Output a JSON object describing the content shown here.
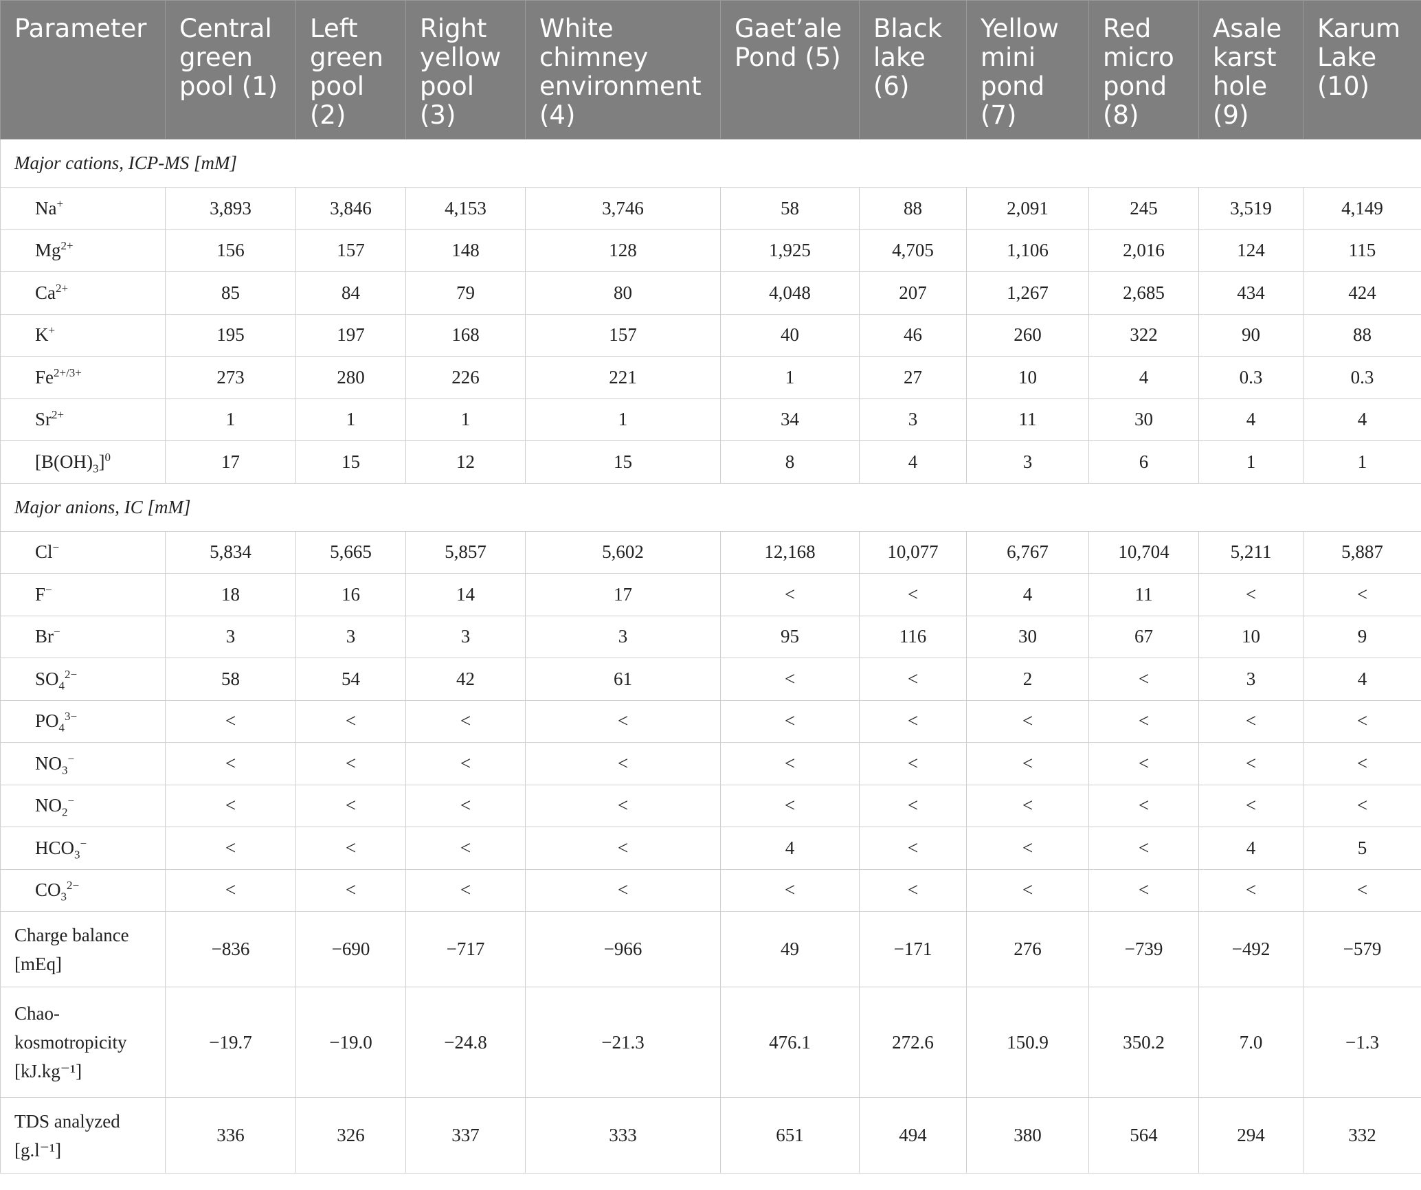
{
  "headers": [
    "Parameter",
    "Central green pool (1)",
    "Left green pool (2)",
    "Right yellow pool (3)",
    "White chimney environment (4)",
    "Gaet’ale Pond (5)",
    "Black lake (6)",
    "Yellow mini pond (7)",
    "Red micro pond (8)",
    "Asale karst hole (9)",
    "Karum Lake (10)"
  ],
  "sections": {
    "cations_title": "Major cations, ICP-MS [mM]",
    "anions_title": "Major anions, IC [mM]"
  },
  "cations": [
    {
      "base": "Na",
      "sup": "+",
      "values": [
        "3,893",
        "3,846",
        "4,153",
        "3,746",
        "58",
        "88",
        "2,091",
        "245",
        "3,519",
        "4,149"
      ]
    },
    {
      "base": "Mg",
      "sup": "2+",
      "values": [
        "156",
        "157",
        "148",
        "128",
        "1,925",
        "4,705",
        "1,106",
        "2,016",
        "124",
        "115"
      ]
    },
    {
      "base": "Ca",
      "sup": "2+",
      "values": [
        "85",
        "84",
        "79",
        "80",
        "4,048",
        "207",
        "1,267",
        "2,685",
        "434",
        "424"
      ]
    },
    {
      "base": "K",
      "sup": "+",
      "values": [
        "195",
        "197",
        "168",
        "157",
        "40",
        "46",
        "260",
        "322",
        "90",
        "88"
      ]
    },
    {
      "base": "Fe",
      "sup": "2+/3+",
      "values": [
        "273",
        "280",
        "226",
        "221",
        "1",
        "27",
        "10",
        "4",
        "0.3",
        "0.3"
      ]
    },
    {
      "base": "Sr",
      "sup": "2+",
      "values": [
        "1",
        "1",
        "1",
        "1",
        "34",
        "3",
        "11",
        "30",
        "4",
        "4"
      ]
    },
    {
      "base": "[B(OH)",
      "sub": "3",
      "tail": "]",
      "sup": "0",
      "values": [
        "17",
        "15",
        "12",
        "15",
        "8",
        "4",
        "3",
        "6",
        "1",
        "1"
      ]
    }
  ],
  "anions": [
    {
      "base": "Cl",
      "sup": "−",
      "values": [
        "5,834",
        "5,665",
        "5,857",
        "5,602",
        "12,168",
        "10,077",
        "6,767",
        "10,704",
        "5,211",
        "5,887"
      ]
    },
    {
      "base": "F",
      "sup": "−",
      "values": [
        "18",
        "16",
        "14",
        "17",
        "<",
        "<",
        "4",
        "11",
        "<",
        "<"
      ]
    },
    {
      "base": "Br",
      "sup": "−",
      "values": [
        "3",
        "3",
        "3",
        "3",
        "95",
        "116",
        "30",
        "67",
        "10",
        "9"
      ]
    },
    {
      "base": "SO",
      "sub": "4",
      "sup": "2−",
      "values": [
        "58",
        "54",
        "42",
        "61",
        "<",
        "<",
        "2",
        "<",
        "3",
        "4"
      ]
    },
    {
      "base": "PO",
      "sub": "4",
      "sup": "3−",
      "values": [
        "<",
        "<",
        "<",
        "<",
        "<",
        "<",
        "<",
        "<",
        "<",
        "<"
      ]
    },
    {
      "base": "NO",
      "sub": "3",
      "sup": "−",
      "values": [
        "<",
        "<",
        "<",
        "<",
        "<",
        "<",
        "<",
        "<",
        "<",
        "<"
      ]
    },
    {
      "base": "NO",
      "sub": "2",
      "sup": "−",
      "values": [
        "<",
        "<",
        "<",
        "<",
        "<",
        "<",
        "<",
        "<",
        "<",
        "<"
      ]
    },
    {
      "base": "HCO",
      "sub": "3",
      "sup": "−",
      "values": [
        "<",
        "<",
        "<",
        "<",
        "4",
        "<",
        "<",
        "<",
        "4",
        "5"
      ]
    },
    {
      "base": "CO",
      "sub": "3",
      "sup": "2−",
      "values": [
        "<",
        "<",
        "<",
        "<",
        "<",
        "<",
        "<",
        "<",
        "<",
        "<"
      ]
    }
  ],
  "extras": [
    {
      "lines": [
        "Charge balance",
        "[mEq]"
      ],
      "values": [
        "−836",
        "−690",
        "−717",
        "−966",
        "49",
        "−171",
        "276",
        "−739",
        "−492",
        "−579"
      ]
    },
    {
      "lines": [
        "Chao-",
        "kosmotropicity",
        "[kJ.kg⁻¹]"
      ],
      "values": [
        "−19.7",
        "−19.0",
        "−24.8",
        "−21.3",
        "476.1",
        "272.6",
        "150.9",
        "350.2",
        "7.0",
        "−1.3"
      ]
    },
    {
      "lines": [
        "TDS analyzed",
        "[g.l⁻¹]"
      ],
      "values": [
        "336",
        "326",
        "337",
        "333",
        "651",
        "494",
        "380",
        "564",
        "294",
        "332"
      ]
    }
  ]
}
